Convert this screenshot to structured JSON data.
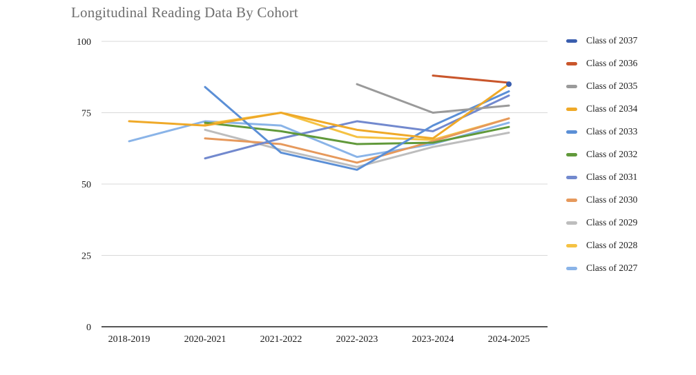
{
  "chart_data": {
    "type": "line",
    "title": "Longitudinal Reading Data By Cohort",
    "xlabel": "",
    "ylabel": "",
    "categories": [
      "2018-2019",
      "2020-2021",
      "2021-2022",
      "2022-2023",
      "2023-2024",
      "2024-2025"
    ],
    "y_ticks": [
      0,
      25,
      50,
      75,
      100
    ],
    "ylim": [
      0,
      100
    ],
    "grid": "horizontal",
    "legend_position": "right",
    "axis_color": "#3d3d3d",
    "gridline_color": "#d8d8d8",
    "tick_label_color": "#1a1a1a",
    "series": [
      {
        "name": "Class of 2037",
        "color": "#3a5eae",
        "values": [
          null,
          null,
          null,
          null,
          null,
          85
        ]
      },
      {
        "name": "Class of 2036",
        "color": "#c9562b",
        "values": [
          null,
          null,
          null,
          null,
          88,
          85.5
        ]
      },
      {
        "name": "Class of 2035",
        "color": "#9a9a9a",
        "values": [
          null,
          null,
          null,
          85,
          75,
          77.5
        ]
      },
      {
        "name": "Class of 2034",
        "color": "#efa928",
        "values": [
          72,
          70.5,
          75,
          69,
          66,
          85
        ]
      },
      {
        "name": "Class of 2033",
        "color": "#5b8fd6",
        "values": [
          null,
          84,
          61,
          55,
          70.5,
          82.5
        ]
      },
      {
        "name": "Class of 2032",
        "color": "#61993b",
        "values": [
          null,
          71.5,
          68.5,
          64,
          64.5,
          70
        ]
      },
      {
        "name": "Class of 2031",
        "color": "#7289ce",
        "values": [
          null,
          59,
          66,
          72,
          68.5,
          81
        ]
      },
      {
        "name": "Class of 2030",
        "color": "#e6995c",
        "values": [
          null,
          66,
          64,
          57.5,
          65,
          73
        ]
      },
      {
        "name": "Class of 2029",
        "color": "#bdbdbd",
        "values": [
          null,
          69,
          62,
          56,
          63,
          68
        ]
      },
      {
        "name": "Class of 2028",
        "color": "#f5c243",
        "values": [
          null,
          71,
          75,
          66.5,
          65.5,
          73
        ]
      },
      {
        "name": "Class of 2027",
        "color": "#8ab4e8",
        "values": [
          65,
          72,
          70.5,
          59.5,
          64,
          71.5
        ]
      }
    ]
  }
}
